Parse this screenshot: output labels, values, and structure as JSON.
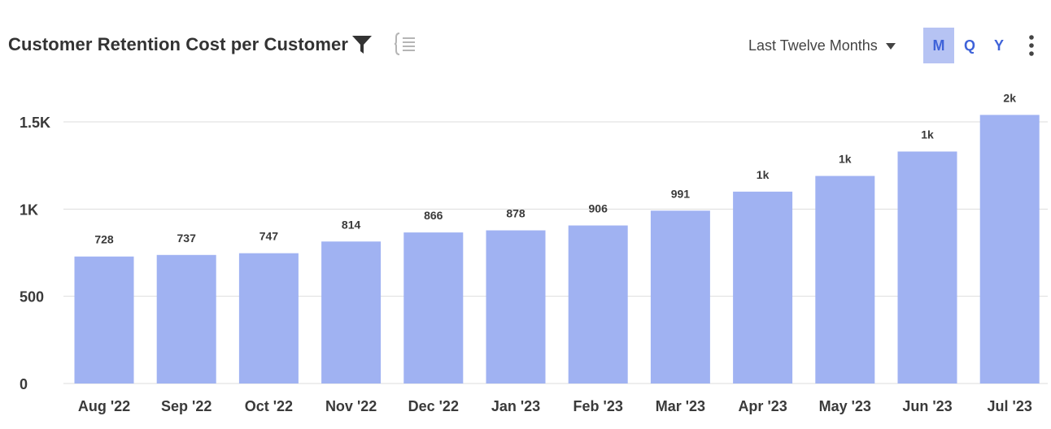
{
  "header": {
    "title": "Customer Retention Cost per Customer",
    "filter_icon": "filter-icon",
    "outline_icon": "outline-list-icon",
    "range_label": "Last Twelve Months",
    "periods": [
      {
        "label": "M",
        "active": true
      },
      {
        "label": "Q",
        "active": false
      },
      {
        "label": "Y",
        "active": false
      }
    ],
    "more_icon": "more-vertical-icon"
  },
  "colors": {
    "bar": "#a0b2f2",
    "grid": "#dddddd",
    "accent": "#3f63d9",
    "active_period_bg": "#b6c3f3"
  },
  "chart_data": {
    "type": "bar",
    "title": "Customer Retention Cost per Customer",
    "xlabel": "",
    "ylabel": "",
    "categories": [
      "Aug '22",
      "Sep '22",
      "Oct '22",
      "Nov '22",
      "Dec '22",
      "Jan '23",
      "Feb '23",
      "Mar '23",
      "Apr '23",
      "May '23",
      "Jun '23",
      "Jul '23"
    ],
    "values": [
      728,
      737,
      747,
      814,
      866,
      878,
      906,
      991,
      1100,
      1190,
      1330,
      1540
    ],
    "data_labels": [
      "728",
      "737",
      "747",
      "814",
      "866",
      "878",
      "906",
      "991",
      "1k",
      "1k",
      "1k",
      "2k"
    ],
    "yticks": [
      0,
      500,
      1000,
      1500
    ],
    "ytick_labels": [
      "0",
      "500",
      "1K",
      "1.5K"
    ],
    "ylim": [
      0,
      1500
    ],
    "grid": true,
    "legend": "none"
  }
}
